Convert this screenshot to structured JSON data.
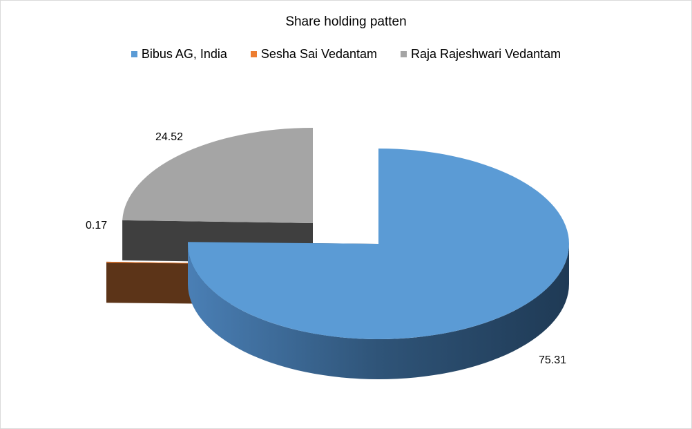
{
  "chart_data": {
    "type": "pie",
    "title": "Share holding patten",
    "legend_position": "top",
    "categories": [
      "Bibus AG, India",
      "Sesha Sai Vedantam",
      "Raja Rajeshwari Vedantam"
    ],
    "values": [
      75.31,
      0.17,
      24.52
    ],
    "colors": [
      "#5b9bd5",
      "#ed7d31",
      "#a5a5a5"
    ],
    "data_labels": [
      "75.31",
      "0.17",
      "24.52"
    ]
  }
}
